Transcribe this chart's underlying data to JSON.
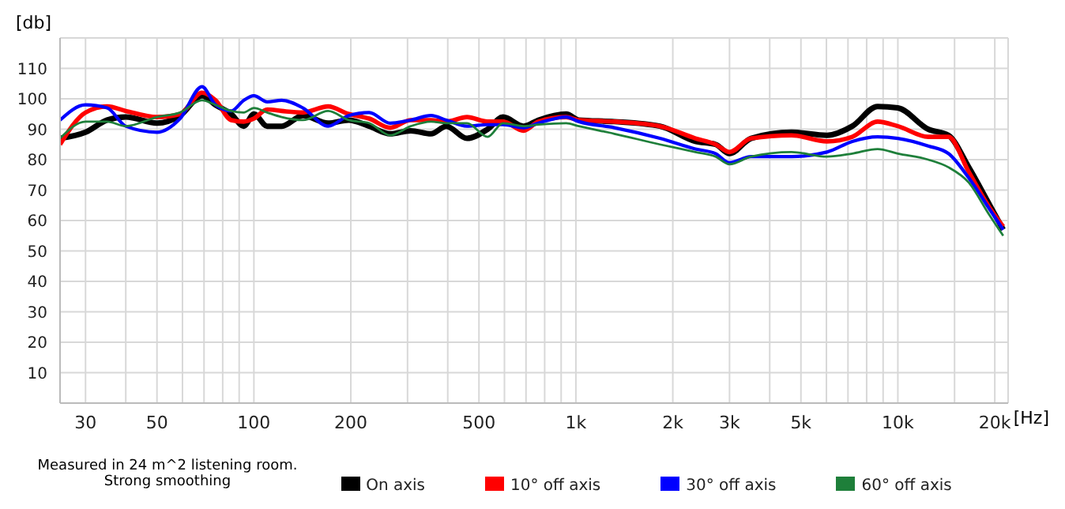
{
  "chart_data": {
    "type": "line",
    "xlabel": "[Hz]",
    "ylabel": "[db]",
    "log": "x",
    "grid": true,
    "legend": "bottom",
    "marker": "none",
    "line_style": "solid",
    "annotations": [
      "Measured in 24 m^2 listening room.\nStrong smoothing"
    ],
    "xlim": [
      25,
      22000
    ],
    "ylim": [
      0,
      120
    ],
    "xticks": [
      30,
      {
        "value": 40,
        "label": null
      },
      50,
      {
        "value": 60,
        "label": null
      },
      {
        "value": 70,
        "label": null
      },
      {
        "value": 80,
        "label": null
      },
      {
        "value": 90,
        "label": null
      },
      100,
      200,
      {
        "value": 300,
        "label": null
      },
      {
        "value": 400,
        "label": null
      },
      500,
      {
        "value": 600,
        "label": null
      },
      {
        "value": 700,
        "label": null
      },
      {
        "value": 800,
        "label": null
      },
      {
        "value": 900,
        "label": null
      },
      {
        "value": 1000,
        "label": "1k"
      },
      {
        "value": 2000,
        "label": "2k"
      },
      {
        "value": 3000,
        "label": "3k"
      },
      {
        "value": 4000,
        "label": null
      },
      {
        "value": 5000,
        "label": "5k"
      },
      {
        "value": 6000,
        "label": null
      },
      {
        "value": 7000,
        "label": null
      },
      {
        "value": 8000,
        "label": null
      },
      {
        "value": 9000,
        "label": null
      },
      {
        "value": 10000,
        "label": "10k"
      },
      {
        "value": 15000,
        "label": null
      },
      {
        "value": 20000,
        "label": "20k"
      }
    ],
    "yticks": [
      {
        "value": 0,
        "label": null
      },
      10,
      20,
      30,
      40,
      50,
      60,
      70,
      80,
      90,
      100,
      110,
      {
        "value": 120,
        "label": null
      }
    ],
    "x": [
      25,
      30,
      35,
      40,
      50,
      59,
      69,
      76,
      85,
      93,
      100,
      110,
      122,
      142,
      170,
      197,
      228,
      265,
      307,
      355,
      396,
      459,
      532,
      594,
      688,
      765,
      933,
      1022,
      1317,
      1824,
      2350,
      2716,
      3000,
      3500,
      4677,
      6025,
      7219,
      8651,
      10000,
      12427,
      14360,
      16600,
      19190,
      21240
    ],
    "series": [
      {
        "name": "On axis",
        "color": "#000000",
        "values": [
          87,
          89,
          93,
          94,
          92,
          94.5,
          101,
          98,
          95,
          91,
          95,
          91,
          91,
          94.5,
          92,
          93,
          91,
          88.5,
          89.5,
          88.5,
          91,
          87,
          90,
          94,
          91,
          93,
          95,
          93,
          92.5,
          91,
          86,
          85,
          82,
          87,
          89,
          88,
          91,
          97.5,
          97,
          90,
          88,
          77.5,
          65.5,
          57
        ]
      },
      {
        "name": "10° off axis",
        "color": "#ff0000",
        "values": [
          85,
          95.5,
          97.5,
          96,
          94,
          95,
          102,
          99.5,
          93,
          92.5,
          93.5,
          96.5,
          96,
          95.5,
          97.5,
          95,
          93.5,
          90.5,
          93,
          93,
          92.5,
          94,
          92.5,
          92.5,
          89.5,
          92.5,
          94,
          93,
          92.5,
          91,
          87,
          85,
          82.5,
          87,
          88,
          86,
          87.5,
          92.5,
          91,
          87.5,
          87.5,
          76,
          64.5,
          58
        ]
      },
      {
        "name": "30° off axis",
        "color": "#0000ff",
        "values": [
          93,
          98,
          97,
          91,
          89,
          93.5,
          104,
          98,
          96,
          99.5,
          101,
          99,
          99.5,
          97,
          91,
          94.5,
          95.5,
          92,
          93,
          94.5,
          93,
          91,
          91.5,
          91.5,
          90.5,
          92,
          94,
          92.5,
          90.5,
          87,
          83.5,
          82,
          79,
          81,
          81,
          82.5,
          86,
          87.5,
          87,
          84.5,
          82,
          74,
          64,
          57
        ]
      },
      {
        "name": "60° off axis",
        "color": "#1e7f3a",
        "values": [
          87,
          92.5,
          92.5,
          91,
          94,
          95.5,
          99.5,
          98,
          96,
          95.5,
          97,
          95.5,
          94,
          93,
          96,
          93,
          92,
          88,
          91,
          92.5,
          92,
          92,
          87.5,
          92,
          91,
          91.5,
          92,
          91,
          88.5,
          85,
          82.5,
          81,
          78.5,
          81,
          82.5,
          81,
          82,
          83.5,
          82,
          80,
          77.5,
          72.5,
          62,
          55
        ]
      }
    ]
  }
}
